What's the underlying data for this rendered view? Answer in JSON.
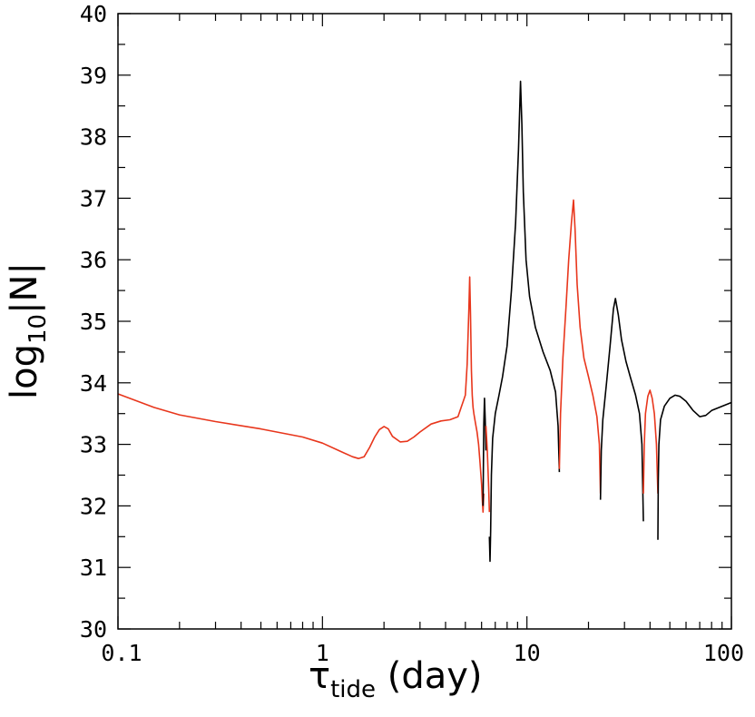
{
  "chart_data": {
    "type": "line",
    "xscale": "log",
    "xlim": [
      0.1,
      100
    ],
    "ylim": [
      30,
      40
    ],
    "xticks": [
      "0.1",
      "1",
      "10",
      "100"
    ],
    "yticks": [
      "30",
      "31",
      "32",
      "33",
      "34",
      "35",
      "36",
      "37",
      "38",
      "39",
      "40"
    ],
    "xlabel": {
      "symbol": "τ",
      "subscript": "tide",
      "unit": " (day)"
    },
    "ylabel": {
      "base": "log",
      "subscript": "10",
      "rest": "|N|"
    },
    "grid": false,
    "colors": {
      "red": "#e8361c",
      "black": "#000000"
    },
    "series": [
      {
        "color": "red",
        "x": [
          0.1,
          0.15,
          0.2,
          0.3,
          0.5,
          0.8,
          1.0,
          1.2,
          1.4,
          1.5,
          1.6,
          1.7,
          1.8,
          1.9,
          2.0,
          2.1,
          2.2,
          2.4,
          2.6,
          2.8,
          3.0,
          3.4,
          3.8,
          4.2,
          4.6,
          5.0,
          5.1,
          5.2,
          5.25,
          5.3,
          5.35,
          5.4,
          5.45,
          5.5,
          5.6,
          5.7,
          5.8,
          5.9,
          6.0,
          6.05,
          6.1,
          6.15
        ],
        "y": [
          33.82,
          33.6,
          33.48,
          33.37,
          33.25,
          33.12,
          33.02,
          32.9,
          32.8,
          32.77,
          32.8,
          32.95,
          33.12,
          33.24,
          33.29,
          33.25,
          33.13,
          33.04,
          33.05,
          33.12,
          33.2,
          33.33,
          33.38,
          33.4,
          33.45,
          33.8,
          34.3,
          35.2,
          35.72,
          35.1,
          34.2,
          33.8,
          33.6,
          33.5,
          33.35,
          33.2,
          33.0,
          32.7,
          32.35,
          32.1,
          31.9,
          32.2
        ]
      },
      {
        "color": "black",
        "x": [
          6.1,
          6.15,
          6.2,
          6.25,
          6.3
        ],
        "y": [
          32.0,
          33.3,
          33.75,
          33.4,
          32.9
        ]
      },
      {
        "color": "red",
        "x": [
          6.3,
          6.4,
          6.5,
          6.55
        ],
        "y": [
          33.3,
          32.9,
          32.3,
          31.9
        ]
      },
      {
        "color": "black",
        "x": [
          6.55,
          6.6,
          6.65,
          6.7,
          6.8,
          7.0,
          7.3,
          7.6,
          8.0,
          8.4,
          8.8,
          9.1,
          9.3,
          9.45,
          9.6,
          9.9,
          10.3,
          11.0,
          12.0,
          13.0,
          13.8,
          14.2,
          14.4
        ],
        "y": [
          31.5,
          31.1,
          31.6,
          32.5,
          33.1,
          33.5,
          33.8,
          34.1,
          34.6,
          35.5,
          36.6,
          37.8,
          38.9,
          38.2,
          37.1,
          36.0,
          35.4,
          34.9,
          34.5,
          34.2,
          33.85,
          33.3,
          32.55
        ]
      },
      {
        "color": "red",
        "x": [
          14.4,
          14.6,
          15.0,
          15.5,
          16.0,
          16.5,
          16.9,
          17.2,
          17.6,
          18.2,
          19.0,
          20.0,
          21.0,
          22.0,
          22.6,
          22.9
        ],
        "y": [
          32.6,
          33.5,
          34.4,
          35.2,
          36.0,
          36.6,
          36.97,
          36.5,
          35.6,
          34.9,
          34.4,
          34.1,
          33.8,
          33.45,
          33.0,
          32.2
        ]
      },
      {
        "color": "black",
        "x": [
          22.9,
          23.1,
          23.5,
          24.5,
          25.5,
          26.5,
          27.1,
          28.0,
          29.0,
          30.5,
          32.0,
          34.0,
          35.5,
          36.5,
          37.1
        ],
        "y": [
          32.1,
          32.9,
          33.4,
          34.0,
          34.6,
          35.2,
          35.37,
          35.1,
          34.7,
          34.35,
          34.1,
          33.8,
          33.5,
          33.0,
          31.75
        ]
      },
      {
        "color": "red",
        "x": [
          37.1,
          37.5,
          38.0,
          39.0,
          40.0,
          41.0,
          42.0,
          43.0,
          43.7
        ],
        "y": [
          32.2,
          33.0,
          33.5,
          33.78,
          33.88,
          33.75,
          33.5,
          33.0,
          32.2
        ]
      },
      {
        "color": "black",
        "x": [
          43.7,
          43.9,
          44.2,
          45.0,
          47.0,
          50.0,
          53.0,
          56.0,
          60.0,
          65.0,
          70.0,
          75.0,
          80.0,
          90.0,
          100.0
        ],
        "y": [
          31.45,
          32.4,
          33.0,
          33.4,
          33.62,
          33.75,
          33.8,
          33.78,
          33.7,
          33.55,
          33.45,
          33.47,
          33.55,
          33.62,
          33.68
        ]
      }
    ]
  }
}
